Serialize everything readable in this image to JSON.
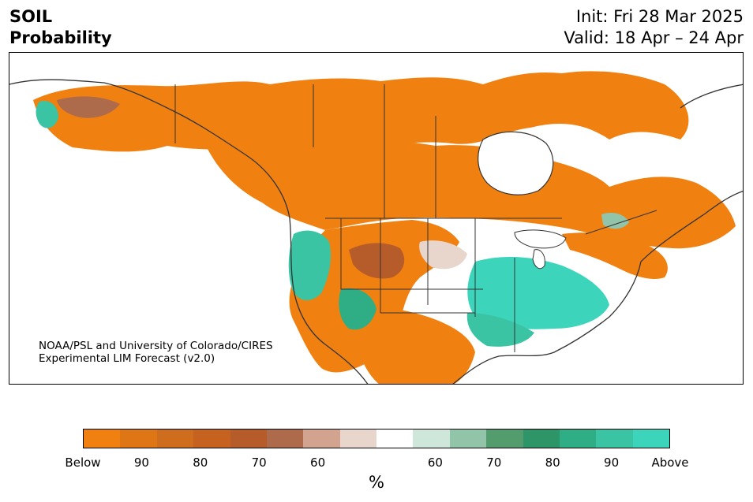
{
  "header": {
    "variable": "SOIL",
    "product": "Probability",
    "init": "Init: Fri 28 Mar 2025",
    "valid": "Valid: 18 Apr – 24 Apr"
  },
  "credit": {
    "line1": "NOAA/PSL and University of Colorado/CIRES",
    "line2": "Experimental LIM Forecast (v2.0)"
  },
  "colorbar": {
    "unit": "%",
    "colors": [
      "#f08010",
      "#df7616",
      "#cf6d1f",
      "#c5621f",
      "#b65c2a",
      "#ad6b4c",
      "#d2a38e",
      "#e8d6cc",
      "#ffffff",
      "#cfe6da",
      "#92c4aa",
      "#539c6e",
      "#2e9569",
      "#2fae86",
      "#3ac4a3",
      "#3cd4bb"
    ],
    "ticks": [
      {
        "label": "Below",
        "frac": 0.0
      },
      {
        "label": "90",
        "frac": 0.1
      },
      {
        "label": "80",
        "frac": 0.2
      },
      {
        "label": "70",
        "frac": 0.3
      },
      {
        "label": "60",
        "frac": 0.4
      },
      {
        "label": "60",
        "frac": 0.6
      },
      {
        "label": "70",
        "frac": 0.7
      },
      {
        "label": "80",
        "frac": 0.8
      },
      {
        "label": "90",
        "frac": 0.9
      },
      {
        "label": "Above",
        "frac": 1.0
      }
    ]
  },
  "map": {
    "region": "North America",
    "ocean_color": "#ffffff",
    "boundary_color": "#333333",
    "dry_color": "#f08010",
    "wet_color": "#3ac4a3"
  }
}
